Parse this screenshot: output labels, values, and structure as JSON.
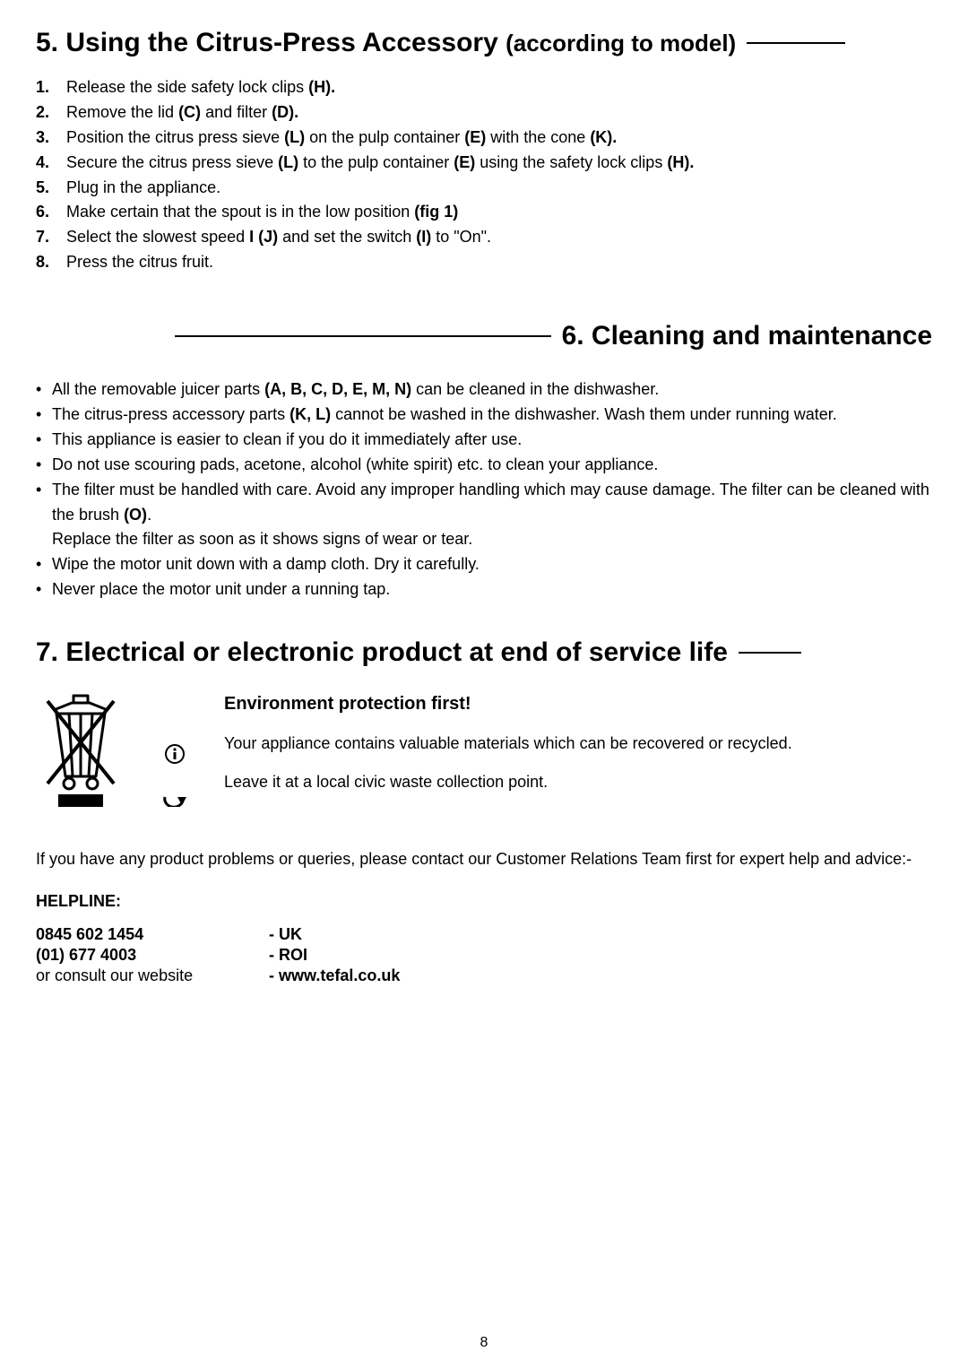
{
  "section5": {
    "title_main": "5. Using the Citrus-Press Accessory ",
    "title_aside": "(according to model)",
    "steps": [
      [
        {
          "t": "Release the side safety lock clips "
        },
        {
          "t": "(H).",
          "b": true
        }
      ],
      [
        {
          "t": "Remove the lid "
        },
        {
          "t": "(C)",
          "b": true
        },
        {
          "t": " and filter "
        },
        {
          "t": "(D).",
          "b": true
        }
      ],
      [
        {
          "t": "Position the citrus press sieve "
        },
        {
          "t": "(L)",
          "b": true
        },
        {
          "t": " on the pulp container "
        },
        {
          "t": "(E)",
          "b": true
        },
        {
          "t": " with the cone "
        },
        {
          "t": "(K).",
          "b": true
        }
      ],
      [
        {
          "t": "Secure the citrus press sieve "
        },
        {
          "t": "(L)",
          "b": true
        },
        {
          "t": " to the pulp container "
        },
        {
          "t": "(E)",
          "b": true
        },
        {
          "t": " using the safety lock clips "
        },
        {
          "t": "(H).",
          "b": true
        }
      ],
      [
        {
          "t": "Plug in the appliance."
        }
      ],
      [
        {
          "t": "Make certain that the spout is in the low position "
        },
        {
          "t": "(fig 1)",
          "b": true
        }
      ],
      [
        {
          "t": "Select the slowest speed "
        },
        {
          "t": "I (J)",
          "b": true
        },
        {
          "t": " and set the switch "
        },
        {
          "t": "(I)",
          "b": true
        },
        {
          "t": " to \"On\"."
        }
      ],
      [
        {
          "t": "Press the citrus fruit."
        }
      ]
    ]
  },
  "section6": {
    "title": "6. Cleaning and maintenance",
    "bullets": [
      [
        {
          "t": "All the removable juicer parts "
        },
        {
          "t": "(A, B, C, D, E, M, N)",
          "b": true
        },
        {
          "t": " can be cleaned in the dishwasher."
        }
      ],
      [
        {
          "t": "The citrus-press accessory parts "
        },
        {
          "t": "(K, L)",
          "b": true
        },
        {
          "t": " cannot be washed in the dishwasher. Wash them under running water."
        }
      ],
      [
        {
          "t": "This appliance is easier to clean if you do it immediately after use."
        }
      ],
      [
        {
          "t": "Do not use scouring pads, acetone, alcohol (white spirit) etc. to clean your appliance."
        }
      ],
      [
        {
          "t": "The filter must be handled with care. Avoid any improper handling which may cause damage. The filter can be cleaned with the brush "
        },
        {
          "t": "(O)",
          "b": true
        },
        {
          "t": "."
        }
      ]
    ],
    "extra_line": "Replace the filter as soon as it shows signs of wear or tear.",
    "bullets2": [
      [
        {
          "t": "Wipe the motor unit down with a damp cloth. Dry it carefully."
        }
      ],
      [
        {
          "t": "Never place the motor unit under a running tap."
        }
      ]
    ]
  },
  "section7": {
    "title": "7. Electrical or electronic product at end of service life",
    "env_title": "Environment protection first!",
    "line1": "Your appliance contains valuable materials which can be recovered or recycled.",
    "line2": "Leave it at a local civic waste collection point."
  },
  "contact": {
    "para": "If you have any product problems or queries, please contact our Customer Relations Team first for expert help and advice:-",
    "helpline_label": "HELPLINE:",
    "rows": [
      {
        "left": "0845 602 1454",
        "left_b": true,
        "right": "- UK",
        "right_b": true
      },
      {
        "left": "(01) 677 4003",
        "left_b": true,
        "right": "- ROI",
        "right_b": true
      },
      {
        "left": "or consult our website",
        "left_b": false,
        "right": "- www.tefal.co.uk",
        "right_b": true
      }
    ]
  },
  "page_number": "8"
}
